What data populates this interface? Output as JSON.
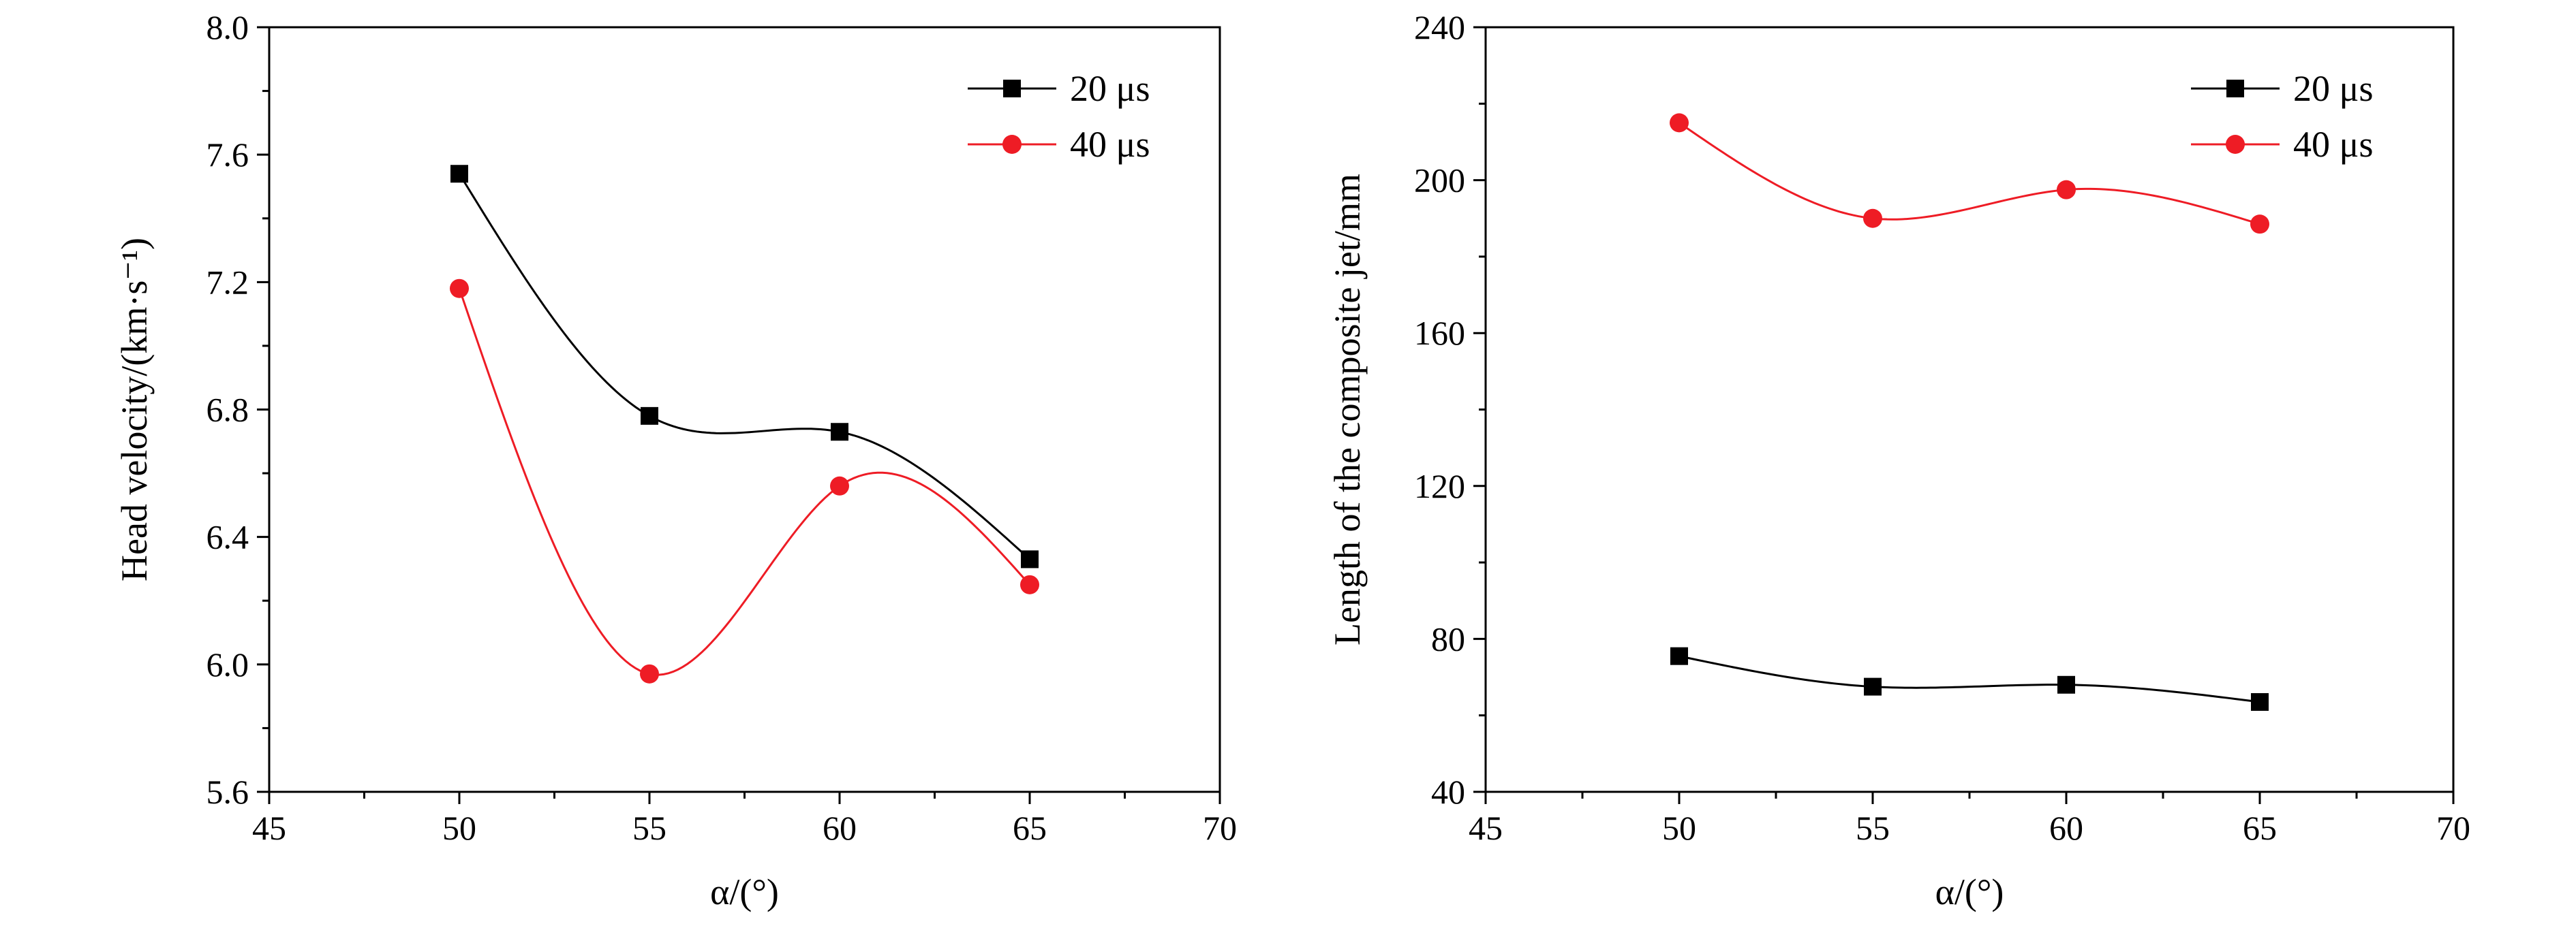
{
  "chart_data": [
    {
      "type": "scatter",
      "xlabel": "α/(°)",
      "ylabel": "Head velocity/(km·s⁻¹)",
      "xlim": [
        45,
        70
      ],
      "ylim": [
        5.6,
        8.0
      ],
      "x_ticks": [
        45,
        50,
        55,
        60,
        65,
        70
      ],
      "y_ticks": [
        5.6,
        6.0,
        6.4,
        6.8,
        7.2,
        7.6,
        8.0
      ],
      "y_tick_labels": [
        "5.6",
        "6.0",
        "6.4",
        "6.8",
        "7.2",
        "7.6",
        "8.0"
      ],
      "legend_position": "top-right",
      "series": [
        {
          "name": "20 μs",
          "x": [
            50,
            55,
            60,
            65
          ],
          "values": [
            7.54,
            6.78,
            6.73,
            6.33
          ],
          "color": "#000000",
          "marker": "square",
          "curve": "smooth fit"
        },
        {
          "name": "40 μs",
          "x": [
            50,
            55,
            60,
            65
          ],
          "values": [
            7.18,
            5.97,
            6.56,
            6.25
          ],
          "color": "#ee1c25",
          "marker": "circle",
          "curve": "smooth fit"
        }
      ]
    },
    {
      "type": "scatter",
      "xlabel": "α/(°)",
      "ylabel": "Length of the composite jet/mm",
      "xlim": [
        45,
        70
      ],
      "ylim": [
        40,
        240
      ],
      "x_ticks": [
        45,
        50,
        55,
        60,
        65,
        70
      ],
      "y_ticks": [
        40,
        80,
        120,
        160,
        200,
        240
      ],
      "y_tick_labels": [
        "40",
        "80",
        "120",
        "160",
        "200",
        "240"
      ],
      "legend_position": "top-right",
      "series": [
        {
          "name": "20 μs",
          "x": [
            50,
            55,
            60,
            65
          ],
          "values": [
            75.5,
            67.5,
            68,
            63.5
          ],
          "color": "#000000",
          "marker": "square",
          "curve": "smooth fit"
        },
        {
          "name": "40 μs",
          "x": [
            50,
            55,
            60,
            65
          ],
          "values": [
            215,
            190,
            197.5,
            188.5
          ],
          "color": "#ee1c25",
          "marker": "circle",
          "curve": "smooth fit"
        }
      ]
    }
  ]
}
